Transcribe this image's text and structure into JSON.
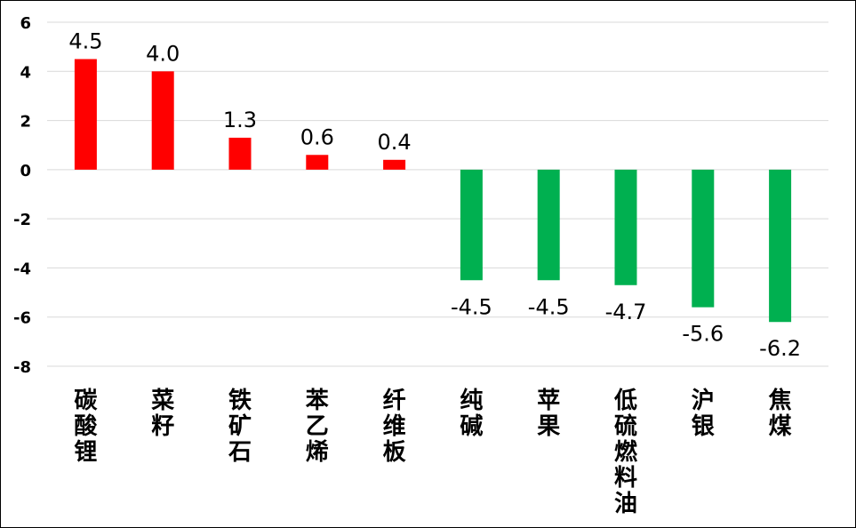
{
  "chart_data": {
    "type": "bar",
    "title": "",
    "xlabel": "",
    "ylabel": "",
    "categories": [
      "碳酸锂",
      "菜籽",
      "铁矿石",
      "苯乙烯",
      "纤维板",
      "纯碱",
      "苹果",
      "低硫燃料油",
      "沪银",
      "焦煤"
    ],
    "values": [
      4.5,
      4.0,
      1.3,
      0.6,
      0.4,
      -4.5,
      -4.5,
      -4.7,
      -5.6,
      -6.2
    ],
    "data_labels": [
      "4.5",
      "4.0",
      "1.3",
      "0.6",
      "0.4",
      "-4.5",
      "-4.5",
      "-4.7",
      "-5.6",
      "-6.2"
    ],
    "ylim": [
      -8,
      6
    ],
    "yticks": [
      6,
      4,
      2,
      0,
      -2,
      -4,
      -6,
      -8
    ],
    "grid": true,
    "legend": "none",
    "colors": {
      "positive": "#ff0000",
      "negative": "#00b050",
      "grid": "#d9d9d9"
    }
  }
}
